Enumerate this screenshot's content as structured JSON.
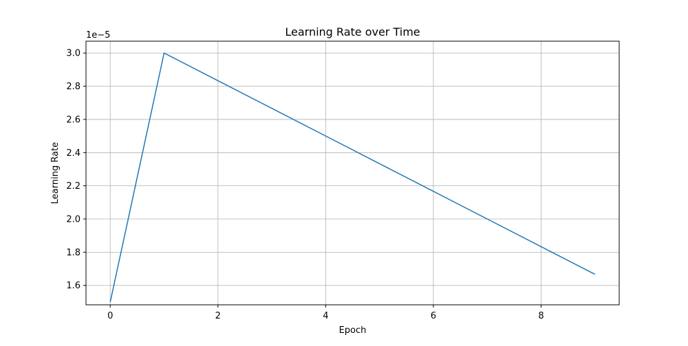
{
  "chart_data": {
    "type": "line",
    "title": "Learning Rate over Time",
    "xlabel": "Epoch",
    "ylabel": "Learning Rate",
    "y_offset_label": "1e−5",
    "xlim": [
      -0.45,
      9.45
    ],
    "ylim": [
      1.483,
      3.0713
    ],
    "grid": true,
    "x_ticks": [
      0,
      2,
      4,
      6,
      8
    ],
    "x_tick_labels": [
      "0",
      "2",
      "4",
      "6",
      "8"
    ],
    "y_ticks": [
      1.6,
      1.8,
      2.0,
      2.2,
      2.4,
      2.6,
      2.8,
      3.0
    ],
    "y_tick_labels": [
      "1.6",
      "1.8",
      "2.0",
      "2.2",
      "2.4",
      "2.6",
      "2.8",
      "3.0"
    ],
    "series": [
      {
        "color": "#1f77b4",
        "x": [
          0,
          1,
          2,
          3,
          4,
          5,
          6,
          7,
          8,
          9
        ],
        "y": [
          1.5,
          3.0,
          2.8333,
          2.6667,
          2.5,
          2.3333,
          2.1667,
          2.0,
          1.8333,
          1.6667
        ]
      }
    ]
  }
}
